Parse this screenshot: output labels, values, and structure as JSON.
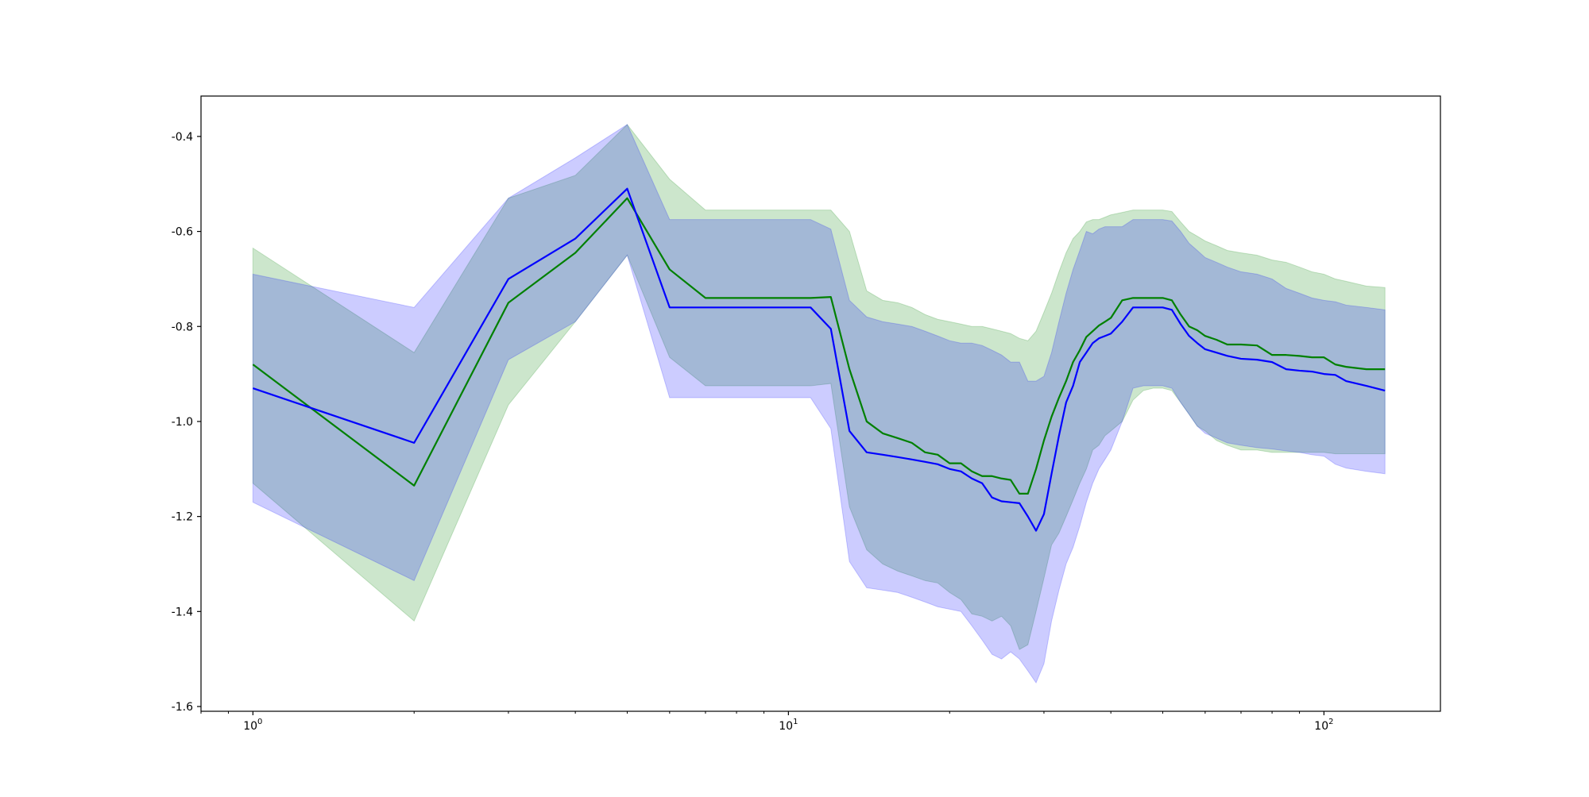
{
  "chart_data": {
    "type": "line",
    "xscale": "log",
    "xlim": [
      0.8,
      165
    ],
    "ylim": [
      -1.61,
      -0.315
    ],
    "xticks": [
      {
        "value": 1,
        "base": "10",
        "exp": "0"
      },
      {
        "value": 10,
        "base": "10",
        "exp": "1"
      },
      {
        "value": 100,
        "base": "10",
        "exp": "2"
      }
    ],
    "yticks": [
      {
        "value": -0.4,
        "label": "-0.4"
      },
      {
        "value": -0.6,
        "label": "-0.6"
      },
      {
        "value": -0.8,
        "label": "-0.8"
      },
      {
        "value": -1.0,
        "label": "-1.0"
      },
      {
        "value": -1.2,
        "label": "-1.2"
      },
      {
        "value": -1.4,
        "label": "-1.4"
      },
      {
        "value": -1.6,
        "label": "-1.6"
      }
    ],
    "grid": false,
    "series": [
      {
        "color": "#008000",
        "band_color": "#008000",
        "band_opacity": 0.2,
        "x": [
          1,
          2,
          3,
          4,
          5,
          6,
          7,
          8,
          9,
          10,
          11,
          12,
          13,
          14,
          15,
          16,
          17,
          18,
          19,
          20,
          21,
          22,
          23,
          24,
          25,
          26,
          27,
          28,
          29,
          30,
          31,
          32,
          33,
          34,
          35,
          36,
          37,
          38,
          39,
          40,
          42,
          44,
          46,
          48,
          50,
          52,
          54,
          56,
          58,
          60,
          63,
          66,
          70,
          75,
          80,
          85,
          90,
          95,
          100,
          105,
          110,
          120,
          130
        ],
        "y": [
          -0.88,
          -1.135,
          -0.75,
          -0.645,
          -0.53,
          -0.68,
          -0.74,
          -0.74,
          -0.74,
          -0.74,
          -0.74,
          -0.738,
          -0.89,
          -1.0,
          -1.025,
          -1.035,
          -1.045,
          -1.065,
          -1.07,
          -1.088,
          -1.088,
          -1.105,
          -1.115,
          -1.115,
          -1.12,
          -1.123,
          -1.152,
          -1.152,
          -1.1,
          -1.04,
          -0.99,
          -0.95,
          -0.915,
          -0.875,
          -0.85,
          -0.822,
          -0.81,
          -0.798,
          -0.79,
          -0.782,
          -0.745,
          -0.74,
          -0.74,
          -0.74,
          -0.74,
          -0.745,
          -0.775,
          -0.8,
          -0.808,
          -0.82,
          -0.828,
          -0.838,
          -0.838,
          -0.84,
          -0.86,
          -0.86,
          -0.862,
          -0.865,
          -0.865,
          -0.88,
          -0.885,
          -0.89,
          -0.89
        ],
        "lower": [
          -1.13,
          -1.42,
          -0.965,
          -0.79,
          -0.65,
          -0.865,
          -0.925,
          -0.925,
          -0.925,
          -0.925,
          -0.925,
          -0.92,
          -1.18,
          -1.27,
          -1.3,
          -1.315,
          -1.325,
          -1.335,
          -1.34,
          -1.36,
          -1.375,
          -1.405,
          -1.41,
          -1.42,
          -1.41,
          -1.43,
          -1.48,
          -1.47,
          -1.4,
          -1.33,
          -1.26,
          -1.235,
          -1.2,
          -1.165,
          -1.13,
          -1.1,
          -1.06,
          -1.05,
          -1.03,
          -1.02,
          -1.0,
          -0.955,
          -0.935,
          -0.93,
          -0.93,
          -0.935,
          -0.96,
          -0.985,
          -1.01,
          -1.02,
          -1.04,
          -1.05,
          -1.06,
          -1.06,
          -1.065,
          -1.065,
          -1.065,
          -1.065,
          -1.065,
          -1.068,
          -1.068,
          -1.068,
          -1.068
        ],
        "upper": [
          -0.635,
          -0.855,
          -0.53,
          -0.482,
          -0.375,
          -0.49,
          -0.555,
          -0.555,
          -0.555,
          -0.555,
          -0.555,
          -0.555,
          -0.6,
          -0.725,
          -0.745,
          -0.75,
          -0.76,
          -0.775,
          -0.785,
          -0.79,
          -0.795,
          -0.8,
          -0.8,
          -0.805,
          -0.81,
          -0.815,
          -0.825,
          -0.83,
          -0.81,
          -0.77,
          -0.73,
          -0.685,
          -0.645,
          -0.615,
          -0.6,
          -0.58,
          -0.575,
          -0.575,
          -0.57,
          -0.565,
          -0.56,
          -0.555,
          -0.555,
          -0.555,
          -0.555,
          -0.558,
          -0.58,
          -0.6,
          -0.61,
          -0.62,
          -0.63,
          -0.64,
          -0.645,
          -0.65,
          -0.66,
          -0.665,
          -0.675,
          -0.685,
          -0.69,
          -0.7,
          -0.705,
          -0.715,
          -0.718
        ]
      },
      {
        "color": "#0000ff",
        "band_color": "#0000ff",
        "band_opacity": 0.2,
        "x": [
          1,
          2,
          3,
          4,
          5,
          6,
          7,
          8,
          9,
          10,
          11,
          12,
          13,
          14,
          15,
          16,
          17,
          18,
          19,
          20,
          21,
          22,
          23,
          24,
          25,
          26,
          27,
          28,
          29,
          30,
          31,
          32,
          33,
          34,
          35,
          36,
          37,
          38,
          39,
          40,
          42,
          44,
          46,
          48,
          50,
          52,
          54,
          56,
          58,
          60,
          63,
          66,
          70,
          75,
          80,
          85,
          90,
          95,
          100,
          105,
          110,
          120,
          130
        ],
        "y": [
          -0.93,
          -1.045,
          -0.7,
          -0.615,
          -0.51,
          -0.76,
          -0.76,
          -0.76,
          -0.76,
          -0.76,
          -0.76,
          -0.805,
          -1.02,
          -1.065,
          -1.07,
          -1.075,
          -1.08,
          -1.085,
          -1.09,
          -1.1,
          -1.105,
          -1.12,
          -1.13,
          -1.16,
          -1.168,
          -1.17,
          -1.172,
          -1.2,
          -1.23,
          -1.195,
          -1.11,
          -1.03,
          -0.96,
          -0.925,
          -0.875,
          -0.855,
          -0.835,
          -0.825,
          -0.82,
          -0.815,
          -0.79,
          -0.76,
          -0.76,
          -0.76,
          -0.76,
          -0.765,
          -0.795,
          -0.82,
          -0.835,
          -0.848,
          -0.855,
          -0.862,
          -0.868,
          -0.87,
          -0.875,
          -0.89,
          -0.893,
          -0.895,
          -0.9,
          -0.902,
          -0.915,
          -0.925,
          -0.935
        ],
        "lower": [
          -1.17,
          -1.335,
          -0.87,
          -0.79,
          -0.65,
          -0.95,
          -0.95,
          -0.95,
          -0.95,
          -0.95,
          -0.95,
          -1.015,
          -1.295,
          -1.35,
          -1.355,
          -1.36,
          -1.37,
          -1.38,
          -1.39,
          -1.395,
          -1.4,
          -1.43,
          -1.46,
          -1.49,
          -1.5,
          -1.485,
          -1.5,
          -1.525,
          -1.55,
          -1.51,
          -1.42,
          -1.355,
          -1.3,
          -1.265,
          -1.22,
          -1.17,
          -1.13,
          -1.1,
          -1.08,
          -1.06,
          -1.0,
          -0.93,
          -0.925,
          -0.925,
          -0.925,
          -0.93,
          -0.96,
          -0.985,
          -1.01,
          -1.025,
          -1.035,
          -1.045,
          -1.05,
          -1.055,
          -1.058,
          -1.062,
          -1.065,
          -1.07,
          -1.073,
          -1.09,
          -1.098,
          -1.105,
          -1.11
        ],
        "upper": [
          -0.69,
          -0.76,
          -0.53,
          -0.445,
          -0.375,
          -0.575,
          -0.575,
          -0.575,
          -0.575,
          -0.575,
          -0.575,
          -0.595,
          -0.745,
          -0.78,
          -0.79,
          -0.795,
          -0.8,
          -0.81,
          -0.82,
          -0.83,
          -0.835,
          -0.835,
          -0.84,
          -0.85,
          -0.86,
          -0.875,
          -0.875,
          -0.915,
          -0.915,
          -0.905,
          -0.855,
          -0.79,
          -0.73,
          -0.68,
          -0.64,
          -0.6,
          -0.605,
          -0.595,
          -0.59,
          -0.59,
          -0.59,
          -0.575,
          -0.575,
          -0.575,
          -0.575,
          -0.578,
          -0.6,
          -0.625,
          -0.64,
          -0.655,
          -0.665,
          -0.675,
          -0.685,
          -0.69,
          -0.7,
          -0.72,
          -0.73,
          -0.74,
          -0.745,
          -0.748,
          -0.755,
          -0.76,
          -0.765
        ]
      }
    ]
  }
}
